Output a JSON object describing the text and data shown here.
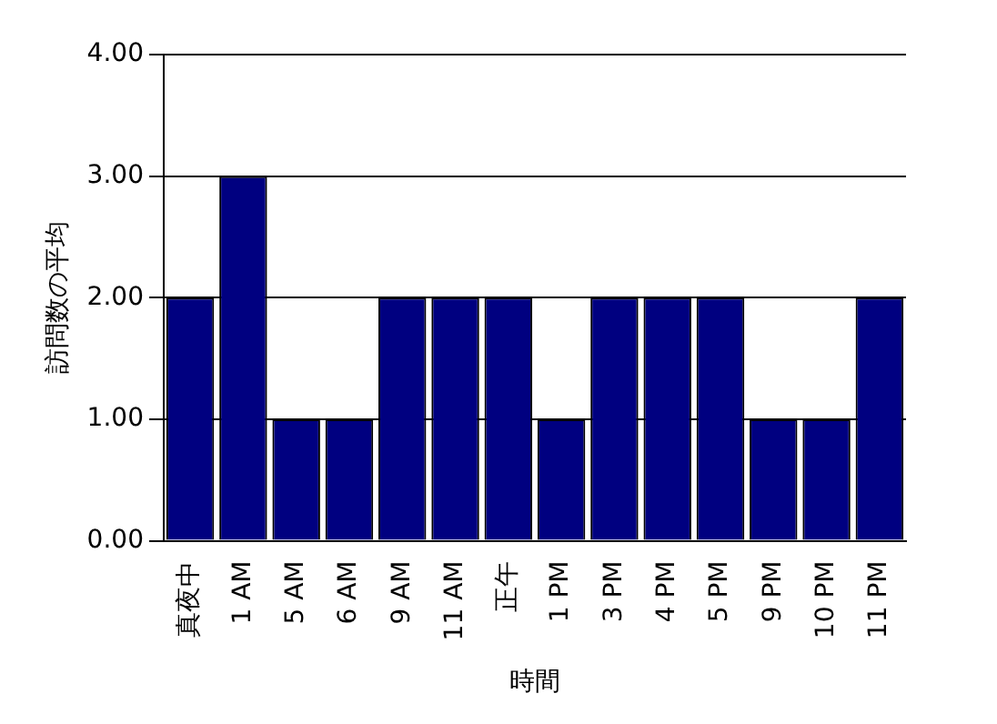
{
  "chart_data": {
    "type": "bar",
    "xlabel": "時間",
    "ylabel": "訪問数の平均",
    "categories": [
      "真夜中",
      "1 AM",
      "5 AM",
      "6 AM",
      "9 AM",
      "11 AM",
      "正午",
      "1 PM",
      "3 PM",
      "4 PM",
      "5 PM",
      "9 PM",
      "10 PM",
      "11 PM"
    ],
    "values": [
      2,
      3,
      1,
      1,
      2,
      2,
      2,
      1,
      2,
      2,
      2,
      1,
      1,
      2
    ],
    "color": "#000080",
    "ylim": [
      0,
      4
    ],
    "yticks": [
      {
        "value": 0,
        "label": "0.00"
      },
      {
        "value": 1,
        "label": "1.00"
      },
      {
        "value": 2,
        "label": "2.00"
      },
      {
        "value": 3,
        "label": "3.00"
      },
      {
        "value": 4,
        "label": "4.00"
      }
    ],
    "grid": "y",
    "legend": false
  }
}
